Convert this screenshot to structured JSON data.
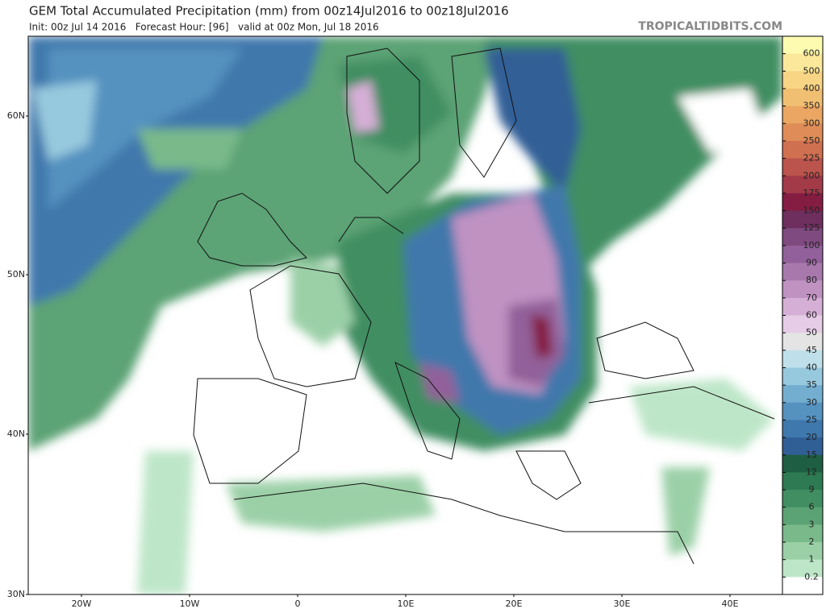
{
  "header": {
    "title": "GEM Total Accumulated Precipitation (mm) from 00z14Jul2016 to 00z18Jul2016",
    "subtitle": "Init: 00z Jul 14 2016   Forecast Hour: [96]   valid at 00z Mon, Jul 18 2016",
    "source": "TROPICALTIDBITS.COM"
  },
  "map": {
    "lat_labels": [
      "60N",
      "50N",
      "40N",
      "30N"
    ],
    "lon_labels": [
      "20W",
      "10W",
      "0",
      "10E",
      "20E",
      "30E",
      "40E"
    ]
  },
  "colorbar": {
    "labels": [
      600,
      500,
      400,
      350,
      300,
      250,
      225,
      200,
      175,
      150,
      125,
      100,
      90,
      80,
      70,
      60,
      50,
      45,
      40,
      35,
      30,
      25,
      20,
      15,
      12,
      9,
      6,
      3,
      2,
      1,
      0.2
    ],
    "colors": [
      "#fdfbb0",
      "#fbe89a",
      "#f7d585",
      "#f1bf72",
      "#eaa662",
      "#df8c58",
      "#cf7050",
      "#bb544c",
      "#a23a48",
      "#851d43",
      "#6e2e5e",
      "#7f4a7f",
      "#92609a",
      "#a878ad",
      "#bf92c2",
      "#d5afd6",
      "#e6cce6",
      "#e4e4e4",
      "#bfe0ea",
      "#97c9de",
      "#73aed0",
      "#5592c0",
      "#3f78ac",
      "#305f96",
      "#1e5e42",
      "#2e7a52",
      "#418e62",
      "#5ba374",
      "#79b98a",
      "#9bd0a7",
      "#bde6c8",
      "#ffffff"
    ]
  }
}
